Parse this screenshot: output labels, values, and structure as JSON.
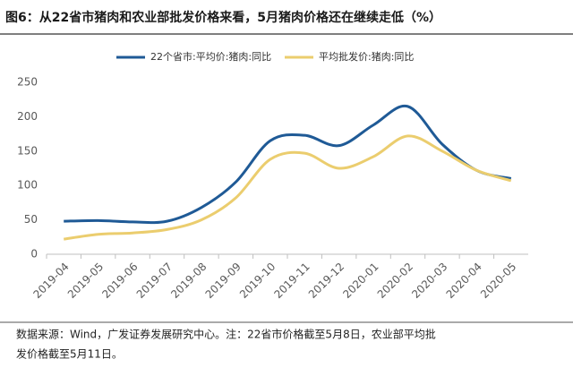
{
  "chart_data": {
    "type": "line",
    "title": "图6：从22省市猪肉和农业部批发价格来看，5月猪肉价格还在继续走低（%）",
    "categories": [
      "2019-04",
      "2019-05",
      "2019-06",
      "2019-07",
      "2019-08",
      "2019-09",
      "2019-10",
      "2019-11",
      "2019-12",
      "2020-01",
      "2020-02",
      "2020-03",
      "2020-04",
      "2020-05"
    ],
    "series": [
      {
        "name": "22个省市:平均价:猪肉:同比",
        "color": "#1f5a96",
        "values": [
          48,
          49,
          47,
          48,
          68,
          105,
          165,
          173,
          158,
          188,
          215,
          160,
          122,
          110
        ]
      },
      {
        "name": "平均批发价:猪肉:同比",
        "color": "#ebcd6e",
        "values": [
          22,
          29,
          31,
          36,
          50,
          82,
          138,
          147,
          125,
          142,
          172,
          150,
          122,
          107
        ]
      }
    ],
    "ylim": [
      0,
      250
    ],
    "yticks": [
      0,
      50,
      100,
      150,
      200,
      250
    ],
    "legend": "top",
    "note": [
      "数据来源：Wind，广发证券发展研究中心。注：22省市价格截至5月8日，农业部平均批",
      "发价格截至5月11日。"
    ]
  }
}
